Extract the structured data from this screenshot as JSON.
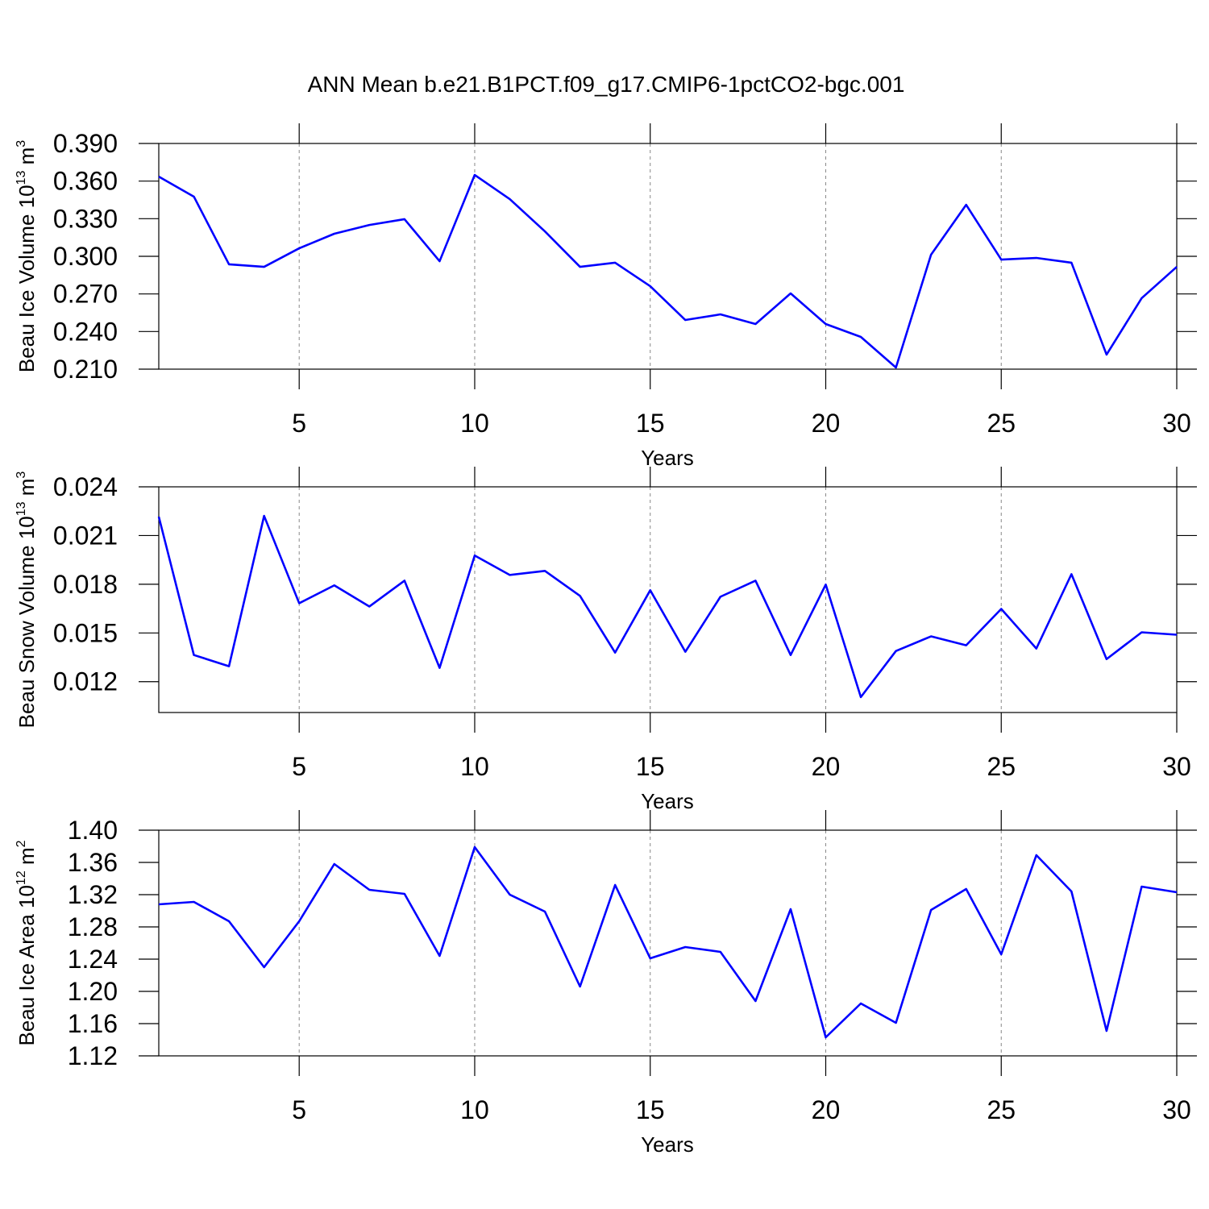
{
  "title": "ANN Mean b.e21.B1PCT.f09_g17.CMIP6-1pctCO2-bgc.001",
  "chart_data": [
    {
      "type": "line",
      "xlabel": "Years",
      "ylabel": [
        "Beau Ice Volume 10",
        "13",
        " m",
        "3"
      ],
      "color": "#0000ff",
      "grid": "x",
      "x": [
        1,
        2,
        3,
        4,
        5,
        6,
        7,
        8,
        9,
        10,
        11,
        12,
        13,
        14,
        15,
        16,
        17,
        18,
        19,
        20,
        21,
        22,
        23,
        24,
        25,
        26,
        27,
        28,
        29,
        30
      ],
      "values": [
        0.3636,
        0.3476,
        0.2936,
        0.2916,
        0.3064,
        0.318,
        0.325,
        0.3296,
        0.2961,
        0.3649,
        0.3456,
        0.3199,
        0.2916,
        0.2949,
        0.2762,
        0.2492,
        0.2537,
        0.246,
        0.2704,
        0.246,
        0.2357,
        0.2113,
        0.3013,
        0.3411,
        0.2974,
        0.2987,
        0.2949,
        0.2216,
        0.2666,
        0.2916
      ],
      "xlim": [
        1,
        30
      ],
      "xticks": [
        5,
        10,
        15,
        20,
        25,
        30
      ],
      "ylim": [
        0.21,
        0.39
      ],
      "yticks": [
        {
          "value": 0.39,
          "label": "0.390"
        },
        {
          "value": 0.36,
          "label": "0.360"
        },
        {
          "value": 0.33,
          "label": "0.330"
        },
        {
          "value": 0.3,
          "label": "0.300"
        },
        {
          "value": 0.27,
          "label": "0.270"
        },
        {
          "value": 0.24,
          "label": "0.240"
        },
        {
          "value": 0.21,
          "label": "0.210"
        }
      ]
    },
    {
      "type": "line",
      "xlabel": "Years",
      "ylabel": [
        "Beau Snow Volume 10",
        "13",
        " m",
        "3"
      ],
      "color": "#0000ff",
      "grid": "x",
      "x": [
        1,
        2,
        3,
        4,
        5,
        6,
        7,
        8,
        9,
        10,
        11,
        12,
        13,
        14,
        15,
        16,
        17,
        18,
        19,
        20,
        21,
        22,
        23,
        24,
        25,
        26,
        27,
        28,
        29,
        30
      ],
      "values": [
        0.02216,
        0.01364,
        0.01295,
        0.02221,
        0.01683,
        0.01793,
        0.01663,
        0.01822,
        0.01285,
        0.01977,
        0.01857,
        0.01882,
        0.01728,
        0.01379,
        0.01763,
        0.01384,
        0.01723,
        0.01822,
        0.01364,
        0.01798,
        0.01105,
        0.01389,
        0.01479,
        0.01424,
        0.01648,
        0.01404,
        0.01862,
        0.01339,
        0.01504,
        0.01489
      ],
      "xlim": [
        1,
        30
      ],
      "xticks": [
        5,
        10,
        15,
        20,
        25,
        30
      ],
      "ylim": [
        0.0101,
        0.024
      ],
      "yticks": [
        0.024,
        0.021,
        0.018,
        0.015,
        0.012
      ]
    },
    {
      "type": "line",
      "xlabel": "Years",
      "ylabel": [
        "Beau Ice Area 10",
        "12",
        " m",
        "2"
      ],
      "color": "#0000ff",
      "grid": "x",
      "x": [
        1,
        2,
        3,
        4,
        5,
        6,
        7,
        8,
        9,
        10,
        11,
        12,
        13,
        14,
        15,
        16,
        17,
        18,
        19,
        20,
        21,
        22,
        23,
        24,
        25,
        26,
        27,
        28,
        29,
        30
      ],
      "values": [
        1.308,
        1.311,
        1.287,
        1.23,
        1.287,
        1.358,
        1.326,
        1.321,
        1.244,
        1.379,
        1.32,
        1.299,
        1.206,
        1.332,
        1.241,
        1.255,
        1.249,
        1.188,
        1.302,
        1.143,
        1.185,
        1.161,
        1.301,
        1.327,
        1.246,
        1.369,
        1.324,
        1.151,
        1.33,
        1.323
      ],
      "xlim": [
        1,
        30
      ],
      "xticks": [
        5,
        10,
        15,
        20,
        25,
        30
      ],
      "ylim": [
        1.12,
        1.4
      ],
      "yticks": [
        {
          "value": 1.4,
          "label": "1.40"
        },
        1.36,
        1.32,
        1.28,
        1.24,
        {
          "value": 1.2,
          "label": "1.20"
        },
        1.16,
        1.12
      ]
    }
  ]
}
